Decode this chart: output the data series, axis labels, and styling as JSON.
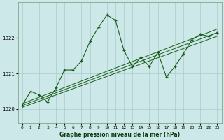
{
  "title": "Graphe pression niveau de la mer (hPa)",
  "bg_color": "#cce8e8",
  "grid_color": "#aacccc",
  "line_color": "#1a5c1a",
  "x_ticks": [
    0,
    1,
    2,
    3,
    4,
    5,
    6,
    7,
    8,
    9,
    10,
    11,
    12,
    13,
    14,
    15,
    16,
    17,
    18,
    19,
    20,
    21,
    22,
    23
  ],
  "y_ticks": [
    1020,
    1021,
    1022
  ],
  "ylim": [
    1019.6,
    1023.0
  ],
  "xlim": [
    -0.5,
    23.5
  ],
  "trend1": {
    "x": [
      0,
      23
    ],
    "y": [
      1020.05,
      1022.05
    ]
  },
  "trend2": {
    "x": [
      0,
      23
    ],
    "y": [
      1020.1,
      1022.15
    ]
  },
  "trend3": {
    "x": [
      0,
      23
    ],
    "y": [
      1020.15,
      1022.25
    ]
  },
  "main_series": {
    "x": [
      0,
      1,
      2,
      3,
      4,
      5,
      6,
      7,
      8,
      9,
      10,
      11,
      12,
      13,
      14,
      15,
      16,
      17,
      18,
      19,
      20,
      21,
      22,
      23
    ],
    "y": [
      1020.1,
      1020.5,
      1020.4,
      1020.2,
      1020.6,
      1021.1,
      1021.1,
      1021.35,
      1021.9,
      1022.3,
      1022.65,
      1022.5,
      1021.65,
      1021.2,
      1021.45,
      1021.2,
      1021.6,
      1020.9,
      1021.2,
      1021.55,
      1021.95,
      1022.1,
      1022.05,
      1022.15
    ]
  }
}
